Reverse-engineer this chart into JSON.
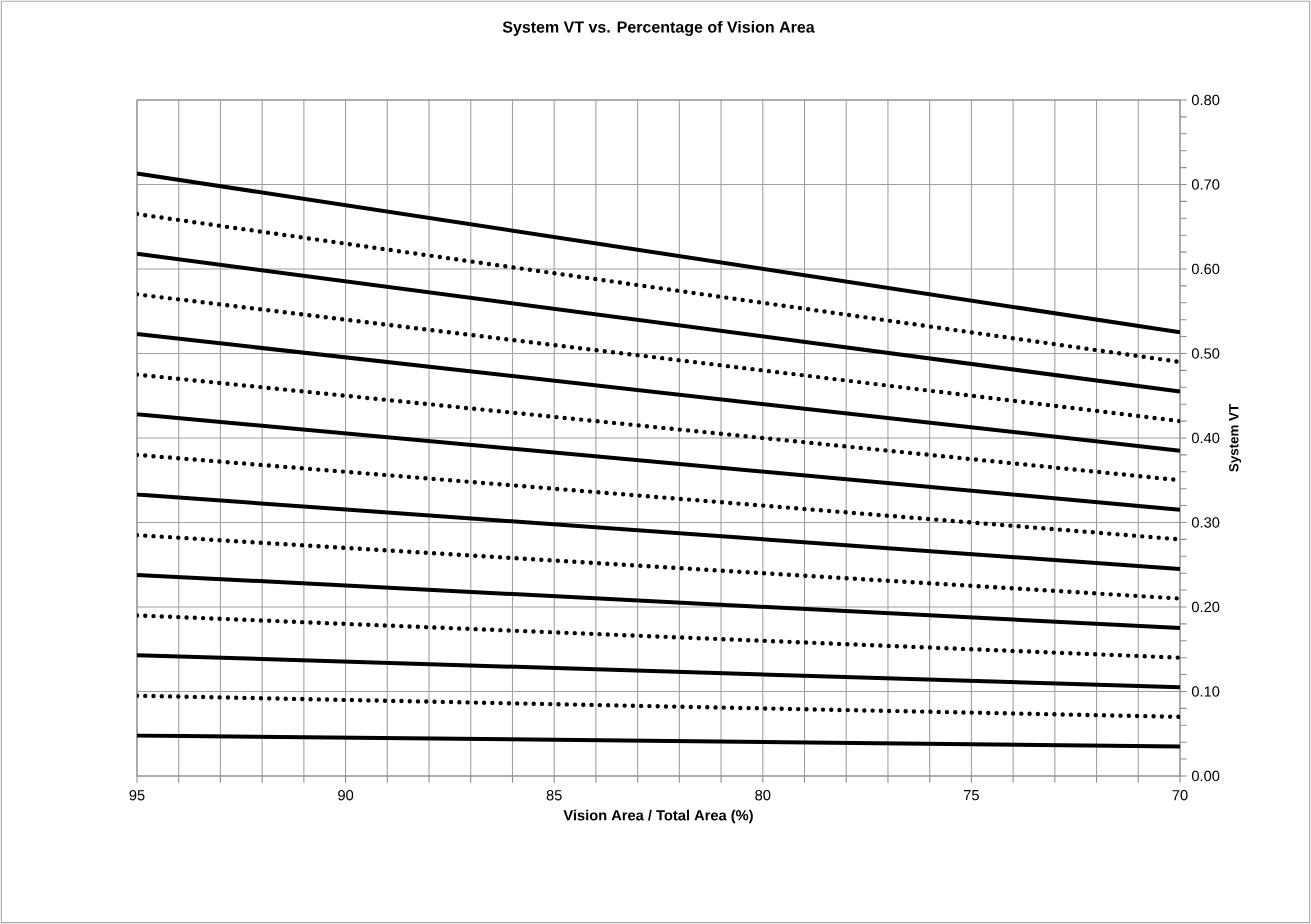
{
  "chart_data": {
    "type": "line",
    "title": "System VT vs. Percentage of Vision Area",
    "xlabel": "Vision Area / Total Area (%)",
    "ylabel": "System VT",
    "x": [
      95,
      70
    ],
    "xlim": [
      95,
      70
    ],
    "ylim": [
      0,
      0.8
    ],
    "xticks": [
      95,
      {
        "value": 94,
        "label": null
      },
      {
        "value": 93,
        "label": null
      },
      {
        "value": 92,
        "label": null
      },
      {
        "value": 91,
        "label": null
      },
      90,
      {
        "value": 89,
        "label": null
      },
      {
        "value": 88,
        "label": null
      },
      {
        "value": 87,
        "label": null
      },
      {
        "value": 86,
        "label": null
      },
      85,
      {
        "value": 84,
        "label": null
      },
      {
        "value": 83,
        "label": null
      },
      {
        "value": 82,
        "label": null
      },
      {
        "value": 81,
        "label": null
      },
      80,
      {
        "value": 79,
        "label": null
      },
      {
        "value": 78,
        "label": null
      },
      {
        "value": 77,
        "label": null
      },
      {
        "value": 76,
        "label": null
      },
      75,
      {
        "value": 74,
        "label": null
      },
      {
        "value": 73,
        "label": null
      },
      {
        "value": 72,
        "label": null
      },
      {
        "value": 71,
        "label": null
      },
      70
    ],
    "yticks": [
      {
        "value": 0,
        "label": "0.00"
      },
      {
        "value": 0.02,
        "label": null
      },
      {
        "value": 0.04,
        "label": null
      },
      {
        "value": 0.06,
        "label": null
      },
      {
        "value": 0.08,
        "label": null
      },
      {
        "value": 0.1,
        "label": "0.10"
      },
      {
        "value": 0.12,
        "label": null
      },
      {
        "value": 0.14,
        "label": null
      },
      {
        "value": 0.16,
        "label": null
      },
      {
        "value": 0.18,
        "label": null
      },
      {
        "value": 0.2,
        "label": "0.20"
      },
      {
        "value": 0.22,
        "label": null
      },
      {
        "value": 0.24,
        "label": null
      },
      {
        "value": 0.26,
        "label": null
      },
      {
        "value": 0.28,
        "label": null
      },
      {
        "value": 0.3,
        "label": "0.30"
      },
      {
        "value": 0.32,
        "label": null
      },
      {
        "value": 0.34,
        "label": null
      },
      {
        "value": 0.36,
        "label": null
      },
      {
        "value": 0.38,
        "label": null
      },
      {
        "value": 0.4,
        "label": "0.40"
      },
      {
        "value": 0.42,
        "label": null
      },
      {
        "value": 0.44,
        "label": null
      },
      {
        "value": 0.46,
        "label": null
      },
      {
        "value": 0.48,
        "label": null
      },
      {
        "value": 0.5,
        "label": "0.50"
      },
      {
        "value": 0.52,
        "label": null
      },
      {
        "value": 0.54,
        "label": null
      },
      {
        "value": 0.56,
        "label": null
      },
      {
        "value": 0.58,
        "label": null
      },
      {
        "value": 0.6,
        "label": "0.60"
      },
      {
        "value": 0.62,
        "label": null
      },
      {
        "value": 0.64,
        "label": null
      },
      {
        "value": 0.66,
        "label": null
      },
      {
        "value": 0.68,
        "label": null
      },
      {
        "value": 0.7,
        "label": "0.70"
      },
      {
        "value": 0.72,
        "label": null
      },
      {
        "value": 0.74,
        "label": null
      },
      {
        "value": 0.76,
        "label": null
      },
      {
        "value": 0.78,
        "label": null
      },
      {
        "value": 0.8,
        "label": "0.80"
      }
    ],
    "grid": true,
    "marker": "none",
    "series": [
      {
        "color": "#000000",
        "line_style": "solid",
        "values": [
          0.713,
          0.525
        ]
      },
      {
        "color": "#000000",
        "line_style": "dotted",
        "values": [
          0.665,
          0.49
        ]
      },
      {
        "color": "#000000",
        "line_style": "solid",
        "values": [
          0.618,
          0.455
        ]
      },
      {
        "color": "#000000",
        "line_style": "dotted",
        "values": [
          0.57,
          0.42
        ]
      },
      {
        "color": "#000000",
        "line_style": "solid",
        "values": [
          0.523,
          0.385
        ]
      },
      {
        "color": "#000000",
        "line_style": "dotted",
        "values": [
          0.475,
          0.35
        ]
      },
      {
        "color": "#000000",
        "line_style": "solid",
        "values": [
          0.428,
          0.315
        ]
      },
      {
        "color": "#000000",
        "line_style": "dotted",
        "values": [
          0.38,
          0.28
        ]
      },
      {
        "color": "#000000",
        "line_style": "solid",
        "values": [
          0.333,
          0.245
        ]
      },
      {
        "color": "#000000",
        "line_style": "dotted",
        "values": [
          0.285,
          0.21
        ]
      },
      {
        "color": "#000000",
        "line_style": "solid",
        "values": [
          0.238,
          0.175
        ]
      },
      {
        "color": "#000000",
        "line_style": "dotted",
        "values": [
          0.19,
          0.14
        ]
      },
      {
        "color": "#000000",
        "line_style": "solid",
        "values": [
          0.143,
          0.105
        ]
      },
      {
        "color": "#000000",
        "line_style": "dotted",
        "values": [
          0.095,
          0.07
        ]
      },
      {
        "color": "#000000",
        "line_style": "solid",
        "values": [
          0.048,
          0.035
        ]
      }
    ]
  }
}
